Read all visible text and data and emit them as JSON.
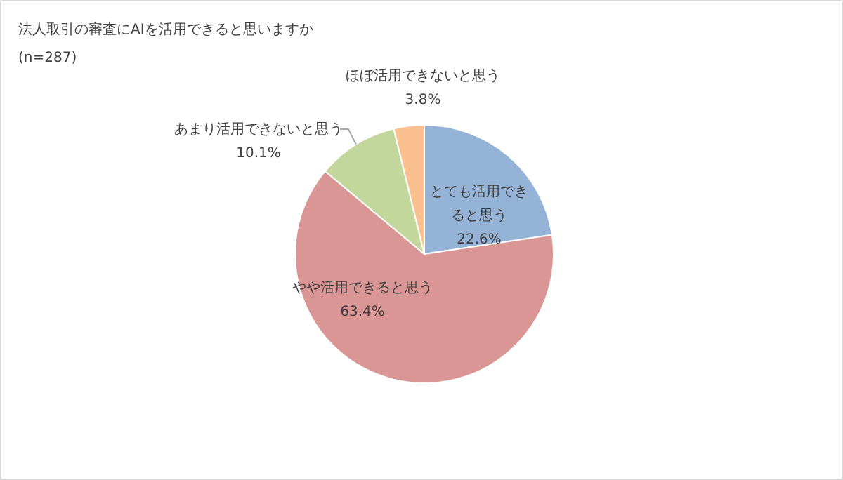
{
  "chart_data": {
    "type": "pie",
    "title": "法人取引の審査にAIを活用できると思いますか",
    "subtitle": "(n=287)",
    "categories": [
      "とても活用できると思う",
      "やや活用できると思う",
      "あまり活用できないと思う",
      "ほぼ活用できないと思う"
    ],
    "values": [
      22.6,
      63.4,
      10.1,
      3.8
    ],
    "colors": [
      "#95b3d7",
      "#d99694",
      "#c3d69b",
      "#fac090"
    ],
    "value_labels": [
      "22.6%",
      "63.4%",
      "10.1%",
      "3.8%"
    ]
  }
}
